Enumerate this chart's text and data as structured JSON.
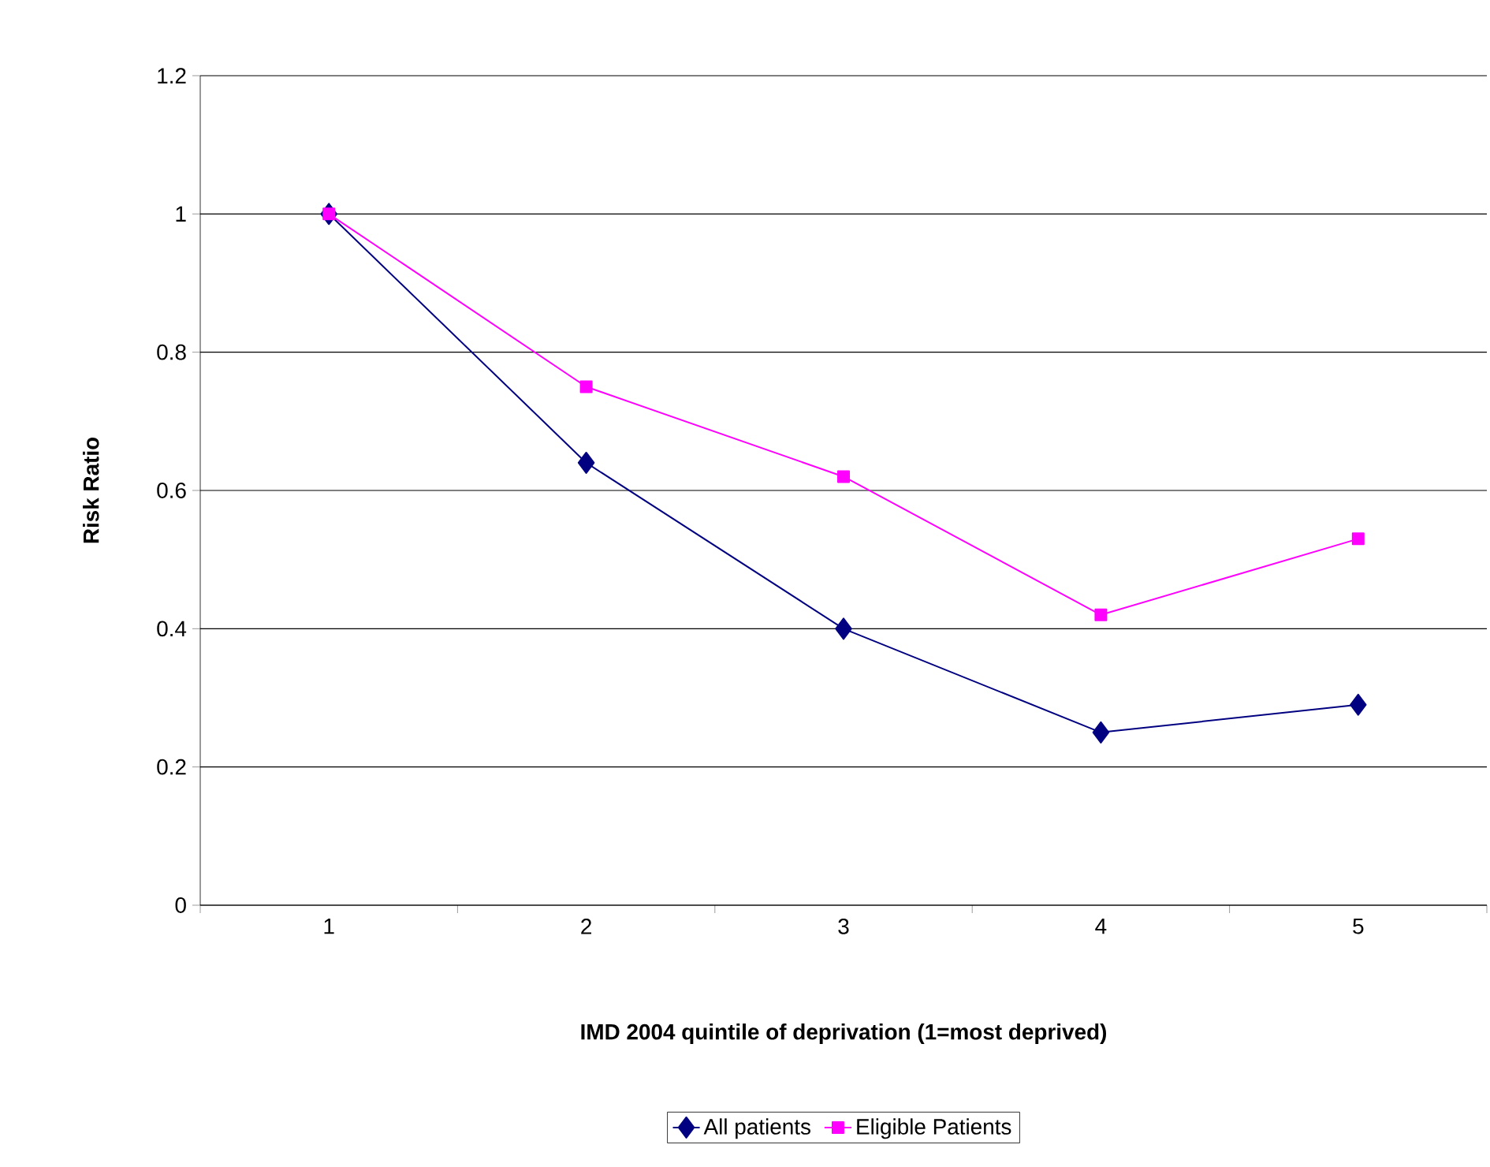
{
  "chart_data": {
    "type": "line",
    "xlabel": "IMD 2004 quintile of deprivation (1=most deprived)",
    "ylabel": "Risk Ratio",
    "categories": [
      "1",
      "2",
      "3",
      "4",
      "5"
    ],
    "series": [
      {
        "name": "All patients",
        "color": "#000080",
        "marker": "diamond",
        "values": [
          1.0,
          0.64,
          0.4,
          0.25,
          0.29
        ]
      },
      {
        "name": "Eligible Patients",
        "color": "#ff00ff",
        "marker": "square",
        "values": [
          1.0,
          0.75,
          0.62,
          0.42,
          0.53
        ]
      }
    ],
    "ylim": [
      0,
      1.2
    ],
    "yticks": [
      0,
      0.2,
      0.4,
      0.6,
      0.8,
      1,
      1.2
    ],
    "grid": "y",
    "legend": "bottom",
    "line_style": "solid"
  }
}
